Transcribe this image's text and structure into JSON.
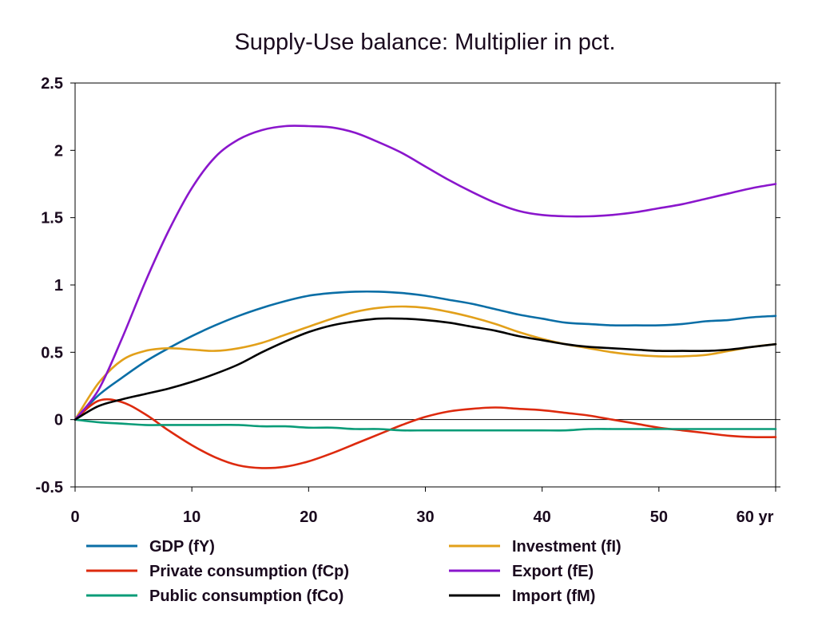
{
  "chart_data": {
    "type": "line",
    "title": "Supply-Use balance: Multiplier in pct.",
    "x_unit_label": "yr",
    "xlim": [
      0,
      60
    ],
    "ylim": [
      -0.5,
      2.5
    ],
    "x_ticks": [
      0,
      10,
      20,
      30,
      40,
      50,
      60
    ],
    "y_ticks": [
      -0.5,
      0,
      0.5,
      1,
      1.5,
      2,
      2.5
    ],
    "x_tick_labels": [
      "0",
      "10",
      "20",
      "30",
      "40",
      "50",
      "60 yr"
    ],
    "y_tick_labels": [
      "-0.5",
      "0",
      "0.5",
      "1",
      "1.5",
      "2",
      "2.5"
    ],
    "grid": false,
    "zero_line": true,
    "legend_position": "bottom",
    "x": [
      0,
      2,
      4,
      6,
      8,
      10,
      12,
      14,
      16,
      18,
      20,
      22,
      24,
      26,
      28,
      30,
      32,
      34,
      36,
      38,
      40,
      42,
      44,
      46,
      48,
      50,
      52,
      54,
      56,
      58,
      60
    ],
    "series": [
      {
        "name": "GDP (fY)",
        "color": "#0a6ea6",
        "values": [
          0,
          0.18,
          0.31,
          0.43,
          0.53,
          0.62,
          0.7,
          0.77,
          0.83,
          0.88,
          0.92,
          0.94,
          0.95,
          0.95,
          0.94,
          0.92,
          0.89,
          0.86,
          0.82,
          0.78,
          0.75,
          0.72,
          0.71,
          0.7,
          0.7,
          0.7,
          0.71,
          0.73,
          0.74,
          0.76,
          0.77
        ]
      },
      {
        "name": "Investment (fI)",
        "color": "#e2a01a",
        "values": [
          0,
          0.27,
          0.44,
          0.51,
          0.53,
          0.52,
          0.51,
          0.53,
          0.57,
          0.63,
          0.69,
          0.75,
          0.8,
          0.83,
          0.84,
          0.83,
          0.8,
          0.76,
          0.71,
          0.65,
          0.6,
          0.56,
          0.53,
          0.5,
          0.48,
          0.47,
          0.47,
          0.48,
          0.51,
          0.54,
          0.56
        ]
      },
      {
        "name": "Private consumption (fCp)",
        "color": "#dd2a0e",
        "values": [
          0,
          0.14,
          0.13,
          0.04,
          -0.08,
          -0.19,
          -0.28,
          -0.34,
          -0.36,
          -0.35,
          -0.31,
          -0.25,
          -0.18,
          -0.11,
          -0.04,
          0.02,
          0.06,
          0.08,
          0.09,
          0.08,
          0.07,
          0.05,
          0.03,
          0,
          -0.03,
          -0.06,
          -0.08,
          -0.1,
          -0.12,
          -0.13,
          -0.13
        ]
      },
      {
        "name": "Export (fE)",
        "color": "#8a16cc",
        "values": [
          0,
          0.22,
          0.6,
          1.02,
          1.4,
          1.72,
          1.95,
          2.08,
          2.15,
          2.18,
          2.18,
          2.17,
          2.13,
          2.06,
          1.98,
          1.88,
          1.78,
          1.69,
          1.61,
          1.55,
          1.52,
          1.51,
          1.51,
          1.52,
          1.54,
          1.57,
          1.6,
          1.64,
          1.68,
          1.72,
          1.75
        ]
      },
      {
        "name": "Public consumption (fCo)",
        "color": "#0a9c78",
        "values": [
          0,
          -0.02,
          -0.03,
          -0.04,
          -0.04,
          -0.04,
          -0.04,
          -0.04,
          -0.05,
          -0.05,
          -0.06,
          -0.06,
          -0.07,
          -0.07,
          -0.08,
          -0.08,
          -0.08,
          -0.08,
          -0.08,
          -0.08,
          -0.08,
          -0.08,
          -0.07,
          -0.07,
          -0.07,
          -0.07,
          -0.07,
          -0.07,
          -0.07,
          -0.07,
          -0.07
        ]
      },
      {
        "name": "Import (fM)",
        "color": "#000000",
        "values": [
          0,
          0.1,
          0.15,
          0.19,
          0.23,
          0.28,
          0.34,
          0.41,
          0.5,
          0.58,
          0.65,
          0.7,
          0.73,
          0.75,
          0.75,
          0.74,
          0.72,
          0.69,
          0.66,
          0.62,
          0.59,
          0.56,
          0.54,
          0.53,
          0.52,
          0.51,
          0.51,
          0.51,
          0.52,
          0.54,
          0.56
        ]
      }
    ]
  }
}
